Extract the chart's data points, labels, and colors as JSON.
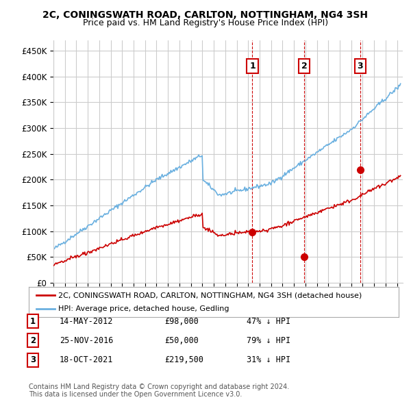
{
  "title": "2C, CONINGSWATH ROAD, CARLTON, NOTTINGHAM, NG4 3SH",
  "subtitle": "Price paid vs. HM Land Registry's House Price Index (HPI)",
  "ylabel_ticks": [
    "£0",
    "£50K",
    "£100K",
    "£150K",
    "£200K",
    "£250K",
    "£300K",
    "£350K",
    "£400K",
    "£450K"
  ],
  "ytick_values": [
    0,
    50000,
    100000,
    150000,
    200000,
    250000,
    300000,
    350000,
    400000,
    450000
  ],
  "ylim": [
    0,
    470000
  ],
  "xlim_start": 1995.0,
  "xlim_end": 2025.5,
  "hpi_color": "#6ab0e0",
  "price_color": "#cc0000",
  "sale_color": "#cc0000",
  "vline_color": "#cc0000",
  "grid_color": "#cccccc",
  "background_color": "#ffffff",
  "sale_dates_year": [
    2012.37,
    2016.9,
    2021.79
  ],
  "sale_prices": [
    98000,
    50000,
    219500
  ],
  "sale_labels": [
    "1",
    "2",
    "3"
  ],
  "legend_label_red": "2C, CONINGSWATH ROAD, CARLTON, NOTTINGHAM, NG4 3SH (detached house)",
  "legend_label_blue": "HPI: Average price, detached house, Gedling",
  "table_rows": [
    [
      "1",
      "14-MAY-2012",
      "£98,000",
      "47% ↓ HPI"
    ],
    [
      "2",
      "25-NOV-2016",
      "£50,000",
      "79% ↓ HPI"
    ],
    [
      "3",
      "18-OCT-2021",
      "£219,500",
      "31% ↓ HPI"
    ]
  ],
  "footnote": "Contains HM Land Registry data © Crown copyright and database right 2024.\nThis data is licensed under the Open Government Licence v3.0.",
  "font_family": "DejaVu Sans"
}
